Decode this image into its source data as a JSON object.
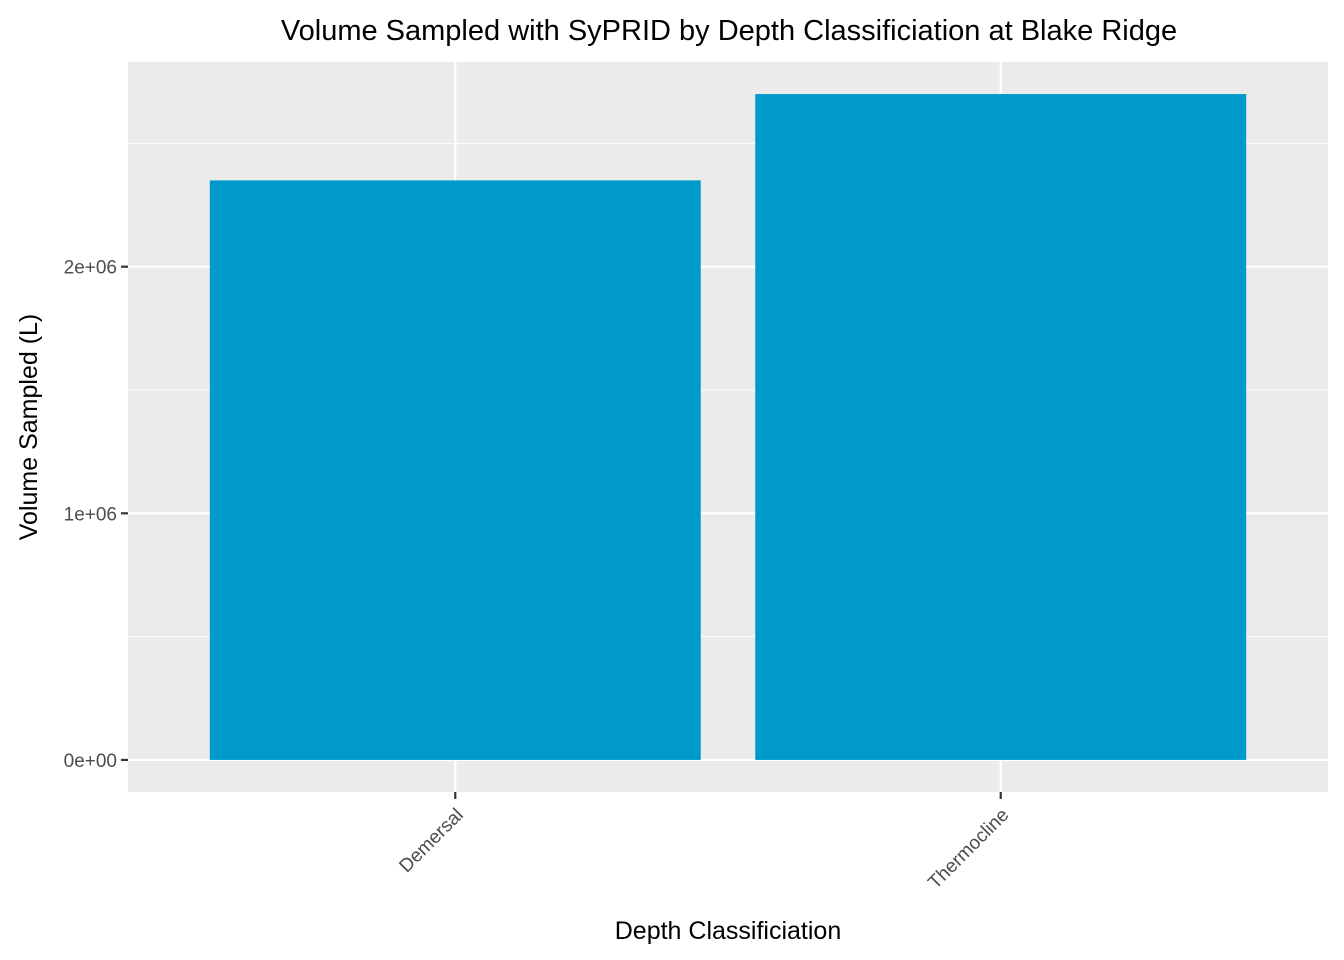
{
  "chart_data": {
    "type": "bar",
    "title": "Volume Sampled with SyPRID by Depth Classificiation at Blake Ridge",
    "xlabel": "Depth Classificiation",
    "ylabel": "Volume Sampled (L)",
    "categories": [
      "Demersal",
      "Thermocline"
    ],
    "values": [
      2350000,
      2700000
    ],
    "ylim": [
      -130000,
      2830000
    ],
    "y_ticks": [
      0,
      1000000,
      2000000
    ],
    "y_tick_labels": [
      "0e+00",
      "1e+06",
      "2e+06"
    ],
    "x_tick_rotation": -45,
    "bar_color": "#0099CC",
    "panel_background": "#EBEBEB",
    "grid": true,
    "grid_color": "#FFFFFF",
    "legend": "none"
  }
}
